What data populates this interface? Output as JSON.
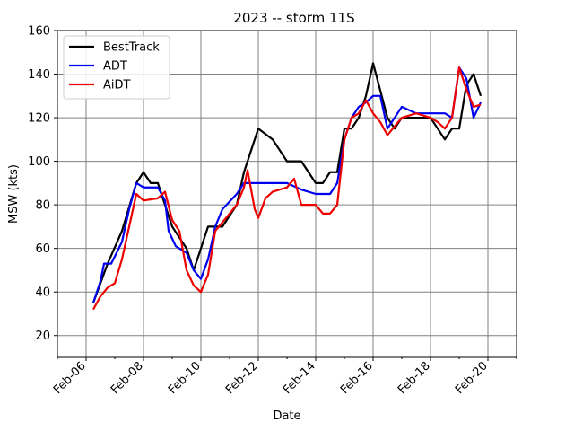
{
  "chart_data": {
    "type": "line",
    "title": "2023 -- storm 11S",
    "xlabel": "Date",
    "ylabel": "MSW (kts)",
    "xlim": [
      "2023-02-05",
      "2023-02-21"
    ],
    "ylim": [
      10,
      160
    ],
    "x_ticks": [
      {
        "date": "2023-02-06",
        "label": "Feb-06"
      },
      {
        "date": "2023-02-08",
        "label": "Feb-08"
      },
      {
        "date": "2023-02-10",
        "label": "Feb-10"
      },
      {
        "date": "2023-02-12",
        "label": "Feb-12"
      },
      {
        "date": "2023-02-14",
        "label": "Feb-14"
      },
      {
        "date": "2023-02-16",
        "label": "Feb-16"
      },
      {
        "date": "2023-02-18",
        "label": "Feb-18"
      },
      {
        "date": "2023-02-20",
        "label": "Feb-20"
      }
    ],
    "y_ticks": [
      20,
      40,
      60,
      80,
      100,
      120,
      140,
      160
    ],
    "grid": true,
    "legend_position": "top-left",
    "series": [
      {
        "name": "BestTrack",
        "color": "#000000",
        "points": [
          [
            "2023-02-06T06:00",
            35
          ],
          [
            "2023-02-06T18:00",
            53
          ],
          [
            "2023-02-07T06:00",
            68
          ],
          [
            "2023-02-07T18:00",
            90
          ],
          [
            "2023-02-08T00:00",
            95
          ],
          [
            "2023-02-08T06:00",
            90
          ],
          [
            "2023-02-08T12:00",
            90
          ],
          [
            "2023-02-09T00:00",
            70
          ],
          [
            "2023-02-09T12:00",
            60
          ],
          [
            "2023-02-09T18:00",
            50
          ],
          [
            "2023-02-10T06:00",
            70
          ],
          [
            "2023-02-10T18:00",
            70
          ],
          [
            "2023-02-11T06:00",
            80
          ],
          [
            "2023-02-11T12:00",
            95
          ],
          [
            "2023-02-11T18:00",
            105
          ],
          [
            "2023-02-12T00:00",
            115
          ],
          [
            "2023-02-12T12:00",
            110
          ],
          [
            "2023-02-13T00:00",
            100
          ],
          [
            "2023-02-13T12:00",
            100
          ],
          [
            "2023-02-14T00:00",
            90
          ],
          [
            "2023-02-14T06:00",
            90
          ],
          [
            "2023-02-14T12:00",
            95
          ],
          [
            "2023-02-14T18:00",
            95
          ],
          [
            "2023-02-15T00:00",
            115
          ],
          [
            "2023-02-15T06:00",
            115
          ],
          [
            "2023-02-15T12:00",
            120
          ],
          [
            "2023-02-15T18:00",
            130
          ],
          [
            "2023-02-16T00:00",
            145
          ],
          [
            "2023-02-16T12:00",
            120
          ],
          [
            "2023-02-16T18:00",
            115
          ],
          [
            "2023-02-17T00:00",
            120
          ],
          [
            "2023-02-17T12:00",
            120
          ],
          [
            "2023-02-18T00:00",
            120
          ],
          [
            "2023-02-18T06:00",
            115
          ],
          [
            "2023-02-18T12:00",
            110
          ],
          [
            "2023-02-18T18:00",
            115
          ],
          [
            "2023-02-19T00:00",
            115
          ],
          [
            "2023-02-19T06:00",
            135
          ],
          [
            "2023-02-19T12:00",
            140
          ],
          [
            "2023-02-19T18:00",
            130
          ]
        ]
      },
      {
        "name": "ADT",
        "color": "#0000ee",
        "points": [
          [
            "2023-02-06T06:00",
            35
          ],
          [
            "2023-02-06T12:00",
            45
          ],
          [
            "2023-02-06T15:00",
            53
          ],
          [
            "2023-02-06T21:00",
            53
          ],
          [
            "2023-02-07T06:00",
            63
          ],
          [
            "2023-02-07T12:00",
            78
          ],
          [
            "2023-02-07T18:00",
            90
          ],
          [
            "2023-02-08T00:00",
            88
          ],
          [
            "2023-02-08T12:00",
            88
          ],
          [
            "2023-02-08T18:00",
            82
          ],
          [
            "2023-02-08T21:00",
            68
          ],
          [
            "2023-02-09T03:00",
            61
          ],
          [
            "2023-02-09T12:00",
            58
          ],
          [
            "2023-02-09T18:00",
            50
          ],
          [
            "2023-02-10T00:00",
            46
          ],
          [
            "2023-02-10T06:00",
            55
          ],
          [
            "2023-02-10T12:00",
            70
          ],
          [
            "2023-02-10T18:00",
            78
          ],
          [
            "2023-02-11T06:00",
            85
          ],
          [
            "2023-02-11T12:00",
            90
          ],
          [
            "2023-02-12T06:00",
            90
          ],
          [
            "2023-02-13T00:00",
            90
          ],
          [
            "2023-02-13T12:00",
            87
          ],
          [
            "2023-02-14T00:00",
            85
          ],
          [
            "2023-02-14T12:00",
            85
          ],
          [
            "2023-02-14T18:00",
            90
          ],
          [
            "2023-02-15T00:00",
            110
          ],
          [
            "2023-02-15T06:00",
            120
          ],
          [
            "2023-02-15T12:00",
            125
          ],
          [
            "2023-02-15T18:00",
            127
          ],
          [
            "2023-02-16T00:00",
            130
          ],
          [
            "2023-02-16T06:00",
            130
          ],
          [
            "2023-02-16T12:00",
            115
          ],
          [
            "2023-02-17T00:00",
            125
          ],
          [
            "2023-02-17T12:00",
            122
          ],
          [
            "2023-02-18T00:00",
            122
          ],
          [
            "2023-02-18T12:00",
            122
          ],
          [
            "2023-02-18T18:00",
            120
          ],
          [
            "2023-02-19T00:00",
            143
          ],
          [
            "2023-02-19T06:00",
            138
          ],
          [
            "2023-02-19T12:00",
            120
          ],
          [
            "2023-02-19T18:00",
            127
          ]
        ]
      },
      {
        "name": "AiDT",
        "color": "#ee0000",
        "points": [
          [
            "2023-02-06T06:00",
            32
          ],
          [
            "2023-02-06T12:00",
            38
          ],
          [
            "2023-02-06T18:00",
            42
          ],
          [
            "2023-02-07T00:00",
            44
          ],
          [
            "2023-02-07T06:00",
            55
          ],
          [
            "2023-02-07T12:00",
            70
          ],
          [
            "2023-02-07T18:00",
            85
          ],
          [
            "2023-02-08T00:00",
            82
          ],
          [
            "2023-02-08T12:00",
            83
          ],
          [
            "2023-02-08T18:00",
            86
          ],
          [
            "2023-02-09T00:00",
            73
          ],
          [
            "2023-02-09T06:00",
            68
          ],
          [
            "2023-02-09T12:00",
            50
          ],
          [
            "2023-02-09T18:00",
            43
          ],
          [
            "2023-02-10T00:00",
            40
          ],
          [
            "2023-02-10T06:00",
            48
          ],
          [
            "2023-02-10T12:00",
            68
          ],
          [
            "2023-02-10T18:00",
            72
          ],
          [
            "2023-02-11T06:00",
            80
          ],
          [
            "2023-02-11T12:00",
            88
          ],
          [
            "2023-02-11T15:00",
            96
          ],
          [
            "2023-02-11T21:00",
            78
          ],
          [
            "2023-02-12T00:00",
            74
          ],
          [
            "2023-02-12T06:00",
            83
          ],
          [
            "2023-02-12T12:00",
            86
          ],
          [
            "2023-02-13T00:00",
            88
          ],
          [
            "2023-02-13T06:00",
            92
          ],
          [
            "2023-02-13T12:00",
            80
          ],
          [
            "2023-02-14T00:00",
            80
          ],
          [
            "2023-02-14T06:00",
            76
          ],
          [
            "2023-02-14T12:00",
            76
          ],
          [
            "2023-02-14T18:00",
            80
          ],
          [
            "2023-02-15T00:00",
            110
          ],
          [
            "2023-02-15T06:00",
            120
          ],
          [
            "2023-02-15T12:00",
            122
          ],
          [
            "2023-02-15T18:00",
            128
          ],
          [
            "2023-02-16T00:00",
            122
          ],
          [
            "2023-02-16T06:00",
            118
          ],
          [
            "2023-02-16T12:00",
            112
          ],
          [
            "2023-02-17T00:00",
            120
          ],
          [
            "2023-02-17T12:00",
            122
          ],
          [
            "2023-02-18T00:00",
            120
          ],
          [
            "2023-02-18T06:00",
            118
          ],
          [
            "2023-02-18T12:00",
            115
          ],
          [
            "2023-02-18T18:00",
            120
          ],
          [
            "2023-02-19T00:00",
            143
          ],
          [
            "2023-02-19T06:00",
            133
          ],
          [
            "2023-02-19T12:00",
            125
          ],
          [
            "2023-02-19T18:00",
            126
          ]
        ]
      }
    ]
  }
}
